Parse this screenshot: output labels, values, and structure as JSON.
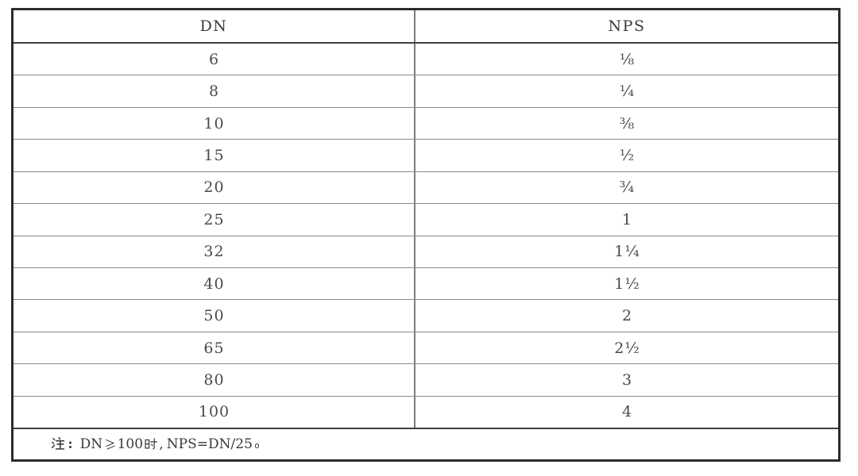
{
  "table": {
    "header": {
      "col1": "DN",
      "col2": "NPS"
    },
    "rows": [
      {
        "dn": "6",
        "nps": "⅛"
      },
      {
        "dn": "8",
        "nps": "¼"
      },
      {
        "dn": "10",
        "nps": "⅜"
      },
      {
        "dn": "15",
        "nps": "½"
      },
      {
        "dn": "20",
        "nps": "¾"
      },
      {
        "dn": "25",
        "nps": "1"
      },
      {
        "dn": "32",
        "nps": "1¼"
      },
      {
        "dn": "40",
        "nps": "1½"
      },
      {
        "dn": "50",
        "nps": "2"
      },
      {
        "dn": "65",
        "nps": "2½"
      },
      {
        "dn": "80",
        "nps": "3"
      },
      {
        "dn": "100",
        "nps": "4"
      }
    ],
    "note": {
      "prefix": "注：",
      "body": "DN⩾100 时，NPS=DN/25。"
    }
  },
  "colors": {
    "border_dark": "#2c2c2c",
    "rule_medium": "#3f3f3f",
    "rule_light": "#8a8a8a",
    "divider": "#7d7d7d",
    "text": "#4a4a4a",
    "page_bg": "#ffffff"
  }
}
